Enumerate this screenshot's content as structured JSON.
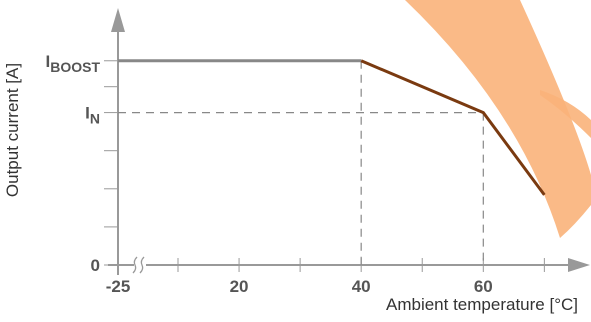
{
  "chart_data": {
    "type": "line",
    "x_label": "Ambient temperature [°C]",
    "y_label": "Output current [A]",
    "xlim": [
      -25,
      76
    ],
    "axis_break": [
      -25,
      10
    ],
    "xticks": [
      -25,
      20,
      40,
      60
    ],
    "xminor_ticks": [
      10,
      30,
      50,
      70
    ],
    "ylim": [
      0,
      1.66
    ],
    "yticks": [
      0,
      {
        "value": 1,
        "label": "I",
        "sub": "N"
      },
      {
        "value": 1.34,
        "label": "I",
        "sub": "BOOST"
      }
    ],
    "yminor_ticks": [
      0.25,
      0.5,
      0.75,
      1.17
    ],
    "series": [
      {
        "color": "#888888",
        "x": [
          -25,
          40
        ],
        "values": [
          1.34,
          1.34
        ]
      },
      {
        "color": "#7a3a10",
        "x": [
          40,
          60,
          70
        ],
        "values": [
          1.34,
          1,
          0.46
        ]
      }
    ]
  }
}
